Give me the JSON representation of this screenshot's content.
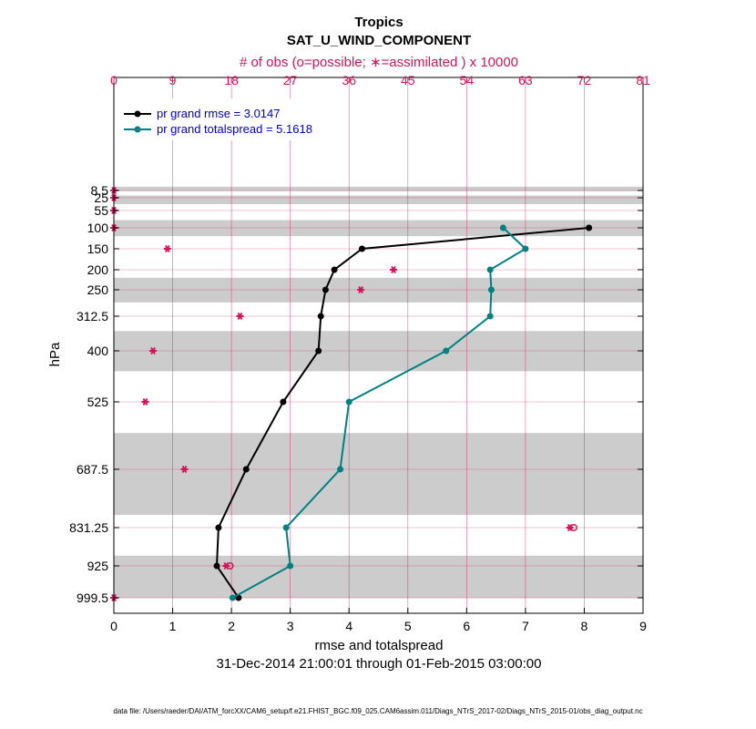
{
  "chart_data": {
    "type": "line",
    "title": "Tropics",
    "subtitle": "SAT_U_WIND_COMPONENT",
    "top_axis_label": "# of obs (o=possible; ∗=assimilated ) x 10000",
    "xlabel": "rmse and totalspread",
    "ylabel": "hPa",
    "date_range": "31-Dec-2014 21:00:01 through 01-Feb-2015 03:00:00",
    "footer": "data file: /Users/raeder/DAI/ATM_forcXX/CAM6_setup/f.e21.FHIST_BGC.f09_025.CAM6assim.011/Diags_NTrS_2017-02/Diags_NTrS_2015-01/obs_diag_output.nc",
    "xlim": [
      0,
      9
    ],
    "x_ticks": [
      "0",
      "1",
      "2",
      "3",
      "4",
      "5",
      "6",
      "7",
      "8",
      "9"
    ],
    "top_xlim": [
      0,
      81
    ],
    "top_ticks": [
      "0",
      "9",
      "18",
      "27",
      "36",
      "45",
      "54",
      "63",
      "72",
      "81"
    ],
    "levels": [
      8.5,
      25,
      55,
      100,
      150,
      200,
      250,
      312.5,
      400,
      525,
      687.5,
      831.25,
      925,
      999.5
    ],
    "level_labels": [
      "8.5",
      "25",
      "55",
      "100",
      "150",
      "200",
      "250",
      "312.5",
      "400",
      "525",
      "687.5",
      "831.25",
      "925",
      "999.5"
    ],
    "series": [
      {
        "name": "pr grand rmse = 3.0147",
        "color": "#000000",
        "levels": [
          100,
          150,
          200,
          250,
          312.5,
          400,
          525,
          687.5,
          831.25,
          925,
          999.5
        ],
        "values": [
          8.08,
          4.22,
          3.75,
          3.6,
          3.52,
          3.48,
          2.88,
          2.25,
          1.78,
          1.75,
          2.12
        ]
      },
      {
        "name": "pr grand totalspread = 5.1618",
        "color": "#008080",
        "levels": [
          100,
          150,
          200,
          250,
          312.5,
          400,
          525,
          687.5,
          831.25,
          925,
          999.5
        ],
        "values": [
          6.62,
          7.0,
          6.4,
          6.42,
          6.4,
          5.65,
          4.0,
          3.85,
          2.93,
          3.0,
          2.02
        ]
      }
    ],
    "obs_counts": {
      "color": "#d4145a",
      "assimilated": [
        {
          "level": 8.5,
          "value": 0
        },
        {
          "level": 25,
          "value": 0
        },
        {
          "level": 55,
          "value": 0
        },
        {
          "level": 100,
          "value": 0
        },
        {
          "level": 150,
          "value": 8.2
        },
        {
          "level": 200,
          "value": 42.8
        },
        {
          "level": 250,
          "value": 37.8
        },
        {
          "level": 312.5,
          "value": 19.3
        },
        {
          "level": 400,
          "value": 6.0
        },
        {
          "level": 525,
          "value": 4.8
        },
        {
          "level": 687.5,
          "value": 10.8
        },
        {
          "level": 831.25,
          "value": 69.8
        },
        {
          "level": 925,
          "value": 17.2
        },
        {
          "level": 999.5,
          "value": 0
        }
      ],
      "possible": [
        {
          "level": 831.25,
          "value": 70.4
        },
        {
          "level": 925,
          "value": 17.8
        }
      ]
    },
    "layer_bands": [
      [
        0,
        10
      ],
      [
        20,
        40
      ],
      [
        80,
        120
      ],
      [
        220,
        280
      ],
      [
        350,
        450
      ],
      [
        600,
        800
      ],
      [
        900,
        1000
      ]
    ]
  }
}
